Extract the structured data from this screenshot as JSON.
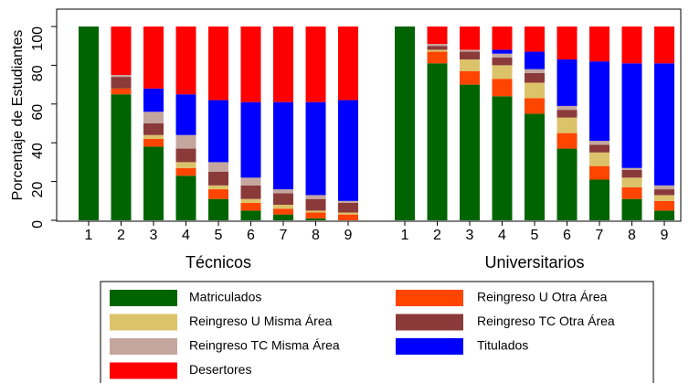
{
  "chart_data": {
    "type": "bar",
    "stacked": true,
    "ylabel": "Porcentaje de Estudiantes",
    "ylim": [
      0,
      100
    ],
    "yticks": [
      0,
      20,
      40,
      60,
      80,
      100
    ],
    "series": [
      {
        "name": "Matriculados",
        "color": "#006400"
      },
      {
        "name": "Reingreso U Otra Área",
        "color": "#ff4500"
      },
      {
        "name": "Reingreso U Misma Área",
        "color": "#dcc36a"
      },
      {
        "name": "Reingreso TC Otra Área",
        "color": "#8b3a3a"
      },
      {
        "name": "Reingreso TC Misma Área",
        "color": "#c4a69f"
      },
      {
        "name": "Titulados",
        "color": "#0000ff"
      },
      {
        "name": "Desertores",
        "color": "#ff0000"
      }
    ],
    "panels": [
      {
        "xlabel": "Técnicos",
        "categories": [
          "1",
          "2",
          "3",
          "4",
          "5",
          "6",
          "7",
          "8",
          "9"
        ],
        "values": [
          [
            100,
            65,
            38,
            23,
            11,
            5,
            3,
            1,
            0
          ],
          [
            0,
            3,
            4,
            4,
            5,
            4,
            3,
            3,
            3
          ],
          [
            0,
            0,
            2,
            3,
            2,
            2,
            2,
            1,
            1
          ],
          [
            0,
            6,
            6,
            7,
            7,
            7,
            6,
            6,
            5
          ],
          [
            0,
            1,
            6,
            7,
            5,
            4,
            2,
            2,
            1
          ],
          [
            0,
            0,
            12,
            21,
            32,
            39,
            45,
            48,
            52
          ],
          [
            0,
            25,
            32,
            35,
            38,
            39,
            39,
            39,
            38
          ]
        ]
      },
      {
        "xlabel": "Universitarios",
        "categories": [
          "1",
          "2",
          "3",
          "4",
          "5",
          "6",
          "7",
          "8",
          "9"
        ],
        "values": [
          [
            100,
            81,
            70,
            64,
            55,
            37,
            21,
            11,
            5
          ],
          [
            0,
            6,
            7,
            9,
            8,
            8,
            7,
            6,
            5
          ],
          [
            0,
            1,
            6,
            7,
            8,
            8,
            7,
            5,
            3
          ],
          [
            0,
            2,
            4,
            4,
            5,
            4,
            4,
            4,
            3
          ],
          [
            0,
            1,
            1,
            2,
            2,
            2,
            2,
            1,
            2
          ],
          [
            0,
            0,
            0,
            2,
            9,
            24,
            41,
            54,
            63
          ],
          [
            0,
            9,
            12,
            12,
            13,
            17,
            18,
            19,
            19
          ]
        ]
      }
    ]
  }
}
